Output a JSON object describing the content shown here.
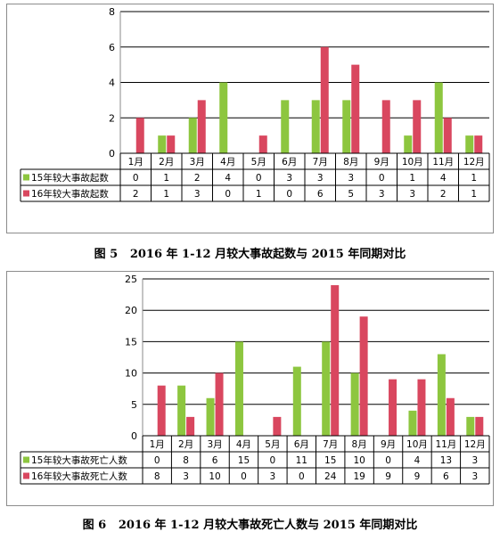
{
  "chart_data": [
    {
      "type": "bar",
      "categories": [
        "1月",
        "2月",
        "3月",
        "4月",
        "5月",
        "6月",
        "7月",
        "8月",
        "9月",
        "10月",
        "11月",
        "12月"
      ],
      "ylim": [
        0,
        8
      ],
      "yticks": [
        0,
        2,
        4,
        6,
        8
      ],
      "grid": true,
      "series": [
        {
          "name": "15年较大事故起数",
          "color": "#8dc63f",
          "values": [
            0,
            1,
            2,
            4,
            0,
            3,
            3,
            3,
            0,
            1,
            4,
            1
          ]
        },
        {
          "name": "16年较大事故起数",
          "color": "#d9475f",
          "values": [
            2,
            1,
            3,
            0,
            1,
            0,
            6,
            5,
            3,
            3,
            2,
            1
          ]
        }
      ],
      "legend": "data-table",
      "caption_label": "图 5",
      "caption_text": "2016 年 1-12 月较大事故起数与 2015 年同期对比"
    },
    {
      "type": "bar",
      "categories": [
        "1月",
        "2月",
        "3月",
        "4月",
        "5月",
        "6月",
        "7月",
        "8月",
        "9月",
        "10月",
        "11月",
        "12月"
      ],
      "ylim": [
        0,
        25
      ],
      "yticks": [
        0,
        5,
        10,
        15,
        20,
        25
      ],
      "grid": true,
      "series": [
        {
          "name": "15年较大事故死亡人数",
          "color": "#8dc63f",
          "values": [
            0,
            8,
            6,
            15,
            0,
            11,
            15,
            10,
            0,
            4,
            13,
            3
          ]
        },
        {
          "name": "16年较大事故死亡人数",
          "color": "#d9475f",
          "values": [
            8,
            3,
            10,
            0,
            3,
            0,
            24,
            19,
            9,
            9,
            6,
            3
          ]
        }
      ],
      "legend": "data-table",
      "caption_label": "图 6",
      "caption_text": "2016 年 1-12 月较大事故死亡人数与 2015 年同期对比"
    }
  ]
}
